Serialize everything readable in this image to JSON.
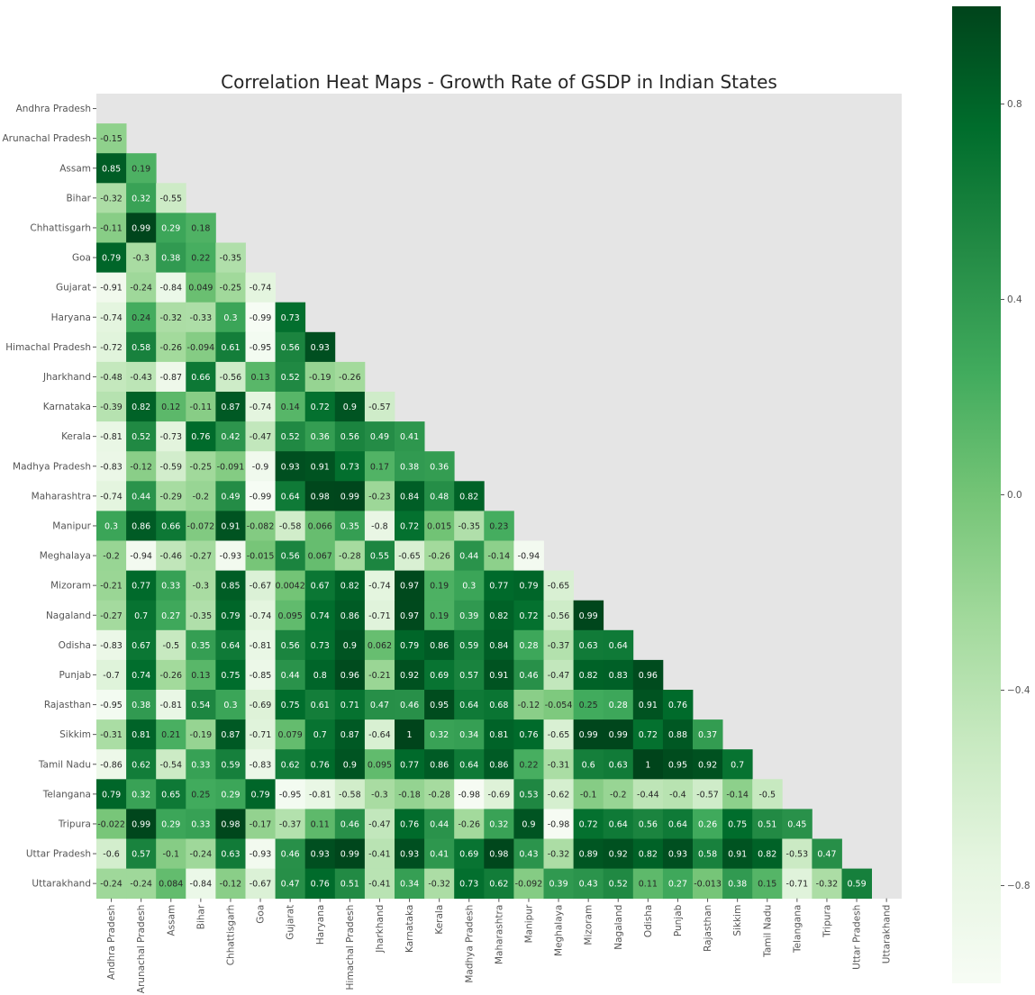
{
  "chart_data": {
    "type": "heatmap",
    "title": "Correlation Heat Maps - Growth Rate of GSDP in Indian States",
    "xlabel": "",
    "ylabel": "",
    "mask": "upper-triangle-and-diagonal",
    "grid": false,
    "colormap": "Greens",
    "colorscale_range": [
      -1,
      1
    ],
    "colorbar": {
      "placement": "right",
      "ticks": [
        0.8,
        0.4,
        0.0,
        -0.4,
        -0.8
      ],
      "tick_labels": [
        "0.8",
        "0.4",
        "0.0",
        "−0.4",
        "−0.8"
      ]
    },
    "colors": {
      "background": "#e5e5e5",
      "low": "#f7fcf5",
      "high": "#00441b",
      "annotation_dark": "#262626",
      "annotation_light": "#ffffff"
    },
    "labels": [
      "Andhra Pradesh",
      "Arunachal Pradesh",
      "Assam",
      "Bihar",
      "Chhattisgarh",
      "Goa",
      "Gujarat",
      "Haryana",
      "Himachal Pradesh",
      "Jharkhand",
      "Karnataka",
      "Kerala",
      "Madhya Pradesh",
      "Maharashtra",
      "Manipur",
      "Meghalaya",
      "Mizoram",
      "Nagaland",
      "Odisha",
      "Punjab",
      "Rajasthan",
      "Sikkim",
      "Tamil Nadu",
      "Telangana",
      "Tripura",
      "Uttar Pradesh",
      "Uttarakhand"
    ],
    "rows": [
      [],
      [
        "-0.15"
      ],
      [
        "0.85",
        "0.19"
      ],
      [
        "-0.32",
        "0.32",
        "-0.55"
      ],
      [
        "-0.11",
        "0.99",
        "0.29",
        "0.18"
      ],
      [
        "0.79",
        "-0.3",
        "0.38",
        "0.22",
        "-0.35"
      ],
      [
        "-0.91",
        "-0.24",
        "-0.84",
        "0.049",
        "-0.25",
        "-0.74"
      ],
      [
        "-0.74",
        "0.24",
        "-0.32",
        "-0.33",
        "0.3",
        "-0.99",
        "0.73"
      ],
      [
        "-0.72",
        "0.58",
        "-0.26",
        "-0.094",
        "0.61",
        "-0.95",
        "0.56",
        "0.93"
      ],
      [
        "-0.48",
        "-0.43",
        "-0.87",
        "0.66",
        "-0.56",
        "0.13",
        "0.52",
        "-0.19",
        "-0.26"
      ],
      [
        "-0.39",
        "0.82",
        "0.12",
        "-0.11",
        "0.87",
        "-0.74",
        "0.14",
        "0.72",
        "0.9",
        "-0.57"
      ],
      [
        "-0.81",
        "0.52",
        "-0.73",
        "0.76",
        "0.42",
        "-0.47",
        "0.52",
        "0.36",
        "0.56",
        "0.49",
        "0.41"
      ],
      [
        "-0.83",
        "-0.12",
        "-0.59",
        "-0.25",
        "-0.091",
        "-0.9",
        "0.93",
        "0.91",
        "0.73",
        "0.17",
        "0.38",
        "0.36"
      ],
      [
        "-0.74",
        "0.44",
        "-0.29",
        "-0.2",
        "0.49",
        "-0.99",
        "0.64",
        "0.98",
        "0.99",
        "-0.23",
        "0.84",
        "0.48",
        "0.82"
      ],
      [
        "0.3",
        "0.86",
        "0.66",
        "-0.072",
        "0.91",
        "-0.082",
        "-0.58",
        "0.066",
        "0.35",
        "-0.8",
        "0.72",
        "0.015",
        "-0.35",
        "0.23"
      ],
      [
        "-0.2",
        "-0.94",
        "-0.46",
        "-0.27",
        "-0.93",
        "-0.015",
        "0.56",
        "0.067",
        "-0.28",
        "0.55",
        "-0.65",
        "-0.26",
        "0.44",
        "-0.14",
        "-0.94"
      ],
      [
        "-0.21",
        "0.77",
        "0.33",
        "-0.3",
        "0.85",
        "-0.67",
        "0.0042",
        "0.67",
        "0.82",
        "-0.74",
        "0.97",
        "0.19",
        "0.3",
        "0.77",
        "0.79",
        "-0.65"
      ],
      [
        "-0.27",
        "0.7",
        "0.27",
        "-0.35",
        "0.79",
        "-0.74",
        "0.095",
        "0.74",
        "0.86",
        "-0.71",
        "0.97",
        "0.19",
        "0.39",
        "0.82",
        "0.72",
        "-0.56",
        "0.99"
      ],
      [
        "-0.83",
        "0.67",
        "-0.5",
        "0.35",
        "0.64",
        "-0.81",
        "0.56",
        "0.73",
        "0.9",
        "0.062",
        "0.79",
        "0.86",
        "0.59",
        "0.84",
        "0.28",
        "-0.37",
        "0.63",
        "0.64"
      ],
      [
        "-0.7",
        "0.74",
        "-0.26",
        "0.13",
        "0.75",
        "-0.85",
        "0.44",
        "0.8",
        "0.96",
        "-0.21",
        "0.92",
        "0.69",
        "0.57",
        "0.91",
        "0.46",
        "-0.47",
        "0.82",
        "0.83",
        "0.96"
      ],
      [
        "-0.95",
        "0.38",
        "-0.81",
        "0.54",
        "0.3",
        "-0.69",
        "0.75",
        "0.61",
        "0.71",
        "0.47",
        "0.46",
        "0.95",
        "0.64",
        "0.68",
        "-0.12",
        "-0.054",
        "0.25",
        "0.28",
        "0.91",
        "0.76"
      ],
      [
        "-0.31",
        "0.81",
        "0.21",
        "-0.19",
        "0.87",
        "-0.71",
        "0.079",
        "0.7",
        "0.87",
        "-0.64",
        "1",
        "0.32",
        "0.34",
        "0.81",
        "0.76",
        "-0.65",
        "0.99",
        "0.99",
        "0.72",
        "0.88",
        "0.37"
      ],
      [
        "-0.86",
        "0.62",
        "-0.54",
        "0.33",
        "0.59",
        "-0.83",
        "0.62",
        "0.76",
        "0.9",
        "0.095",
        "0.77",
        "0.86",
        "0.64",
        "0.86",
        "0.22",
        "-0.31",
        "0.6",
        "0.63",
        "1",
        "0.95",
        "0.92",
        "0.7"
      ],
      [
        "0.79",
        "0.32",
        "0.65",
        "0.25",
        "0.29",
        "0.79",
        "-0.95",
        "-0.81",
        "-0.58",
        "-0.3",
        "-0.18",
        "-0.28",
        "-0.98",
        "-0.69",
        "0.53",
        "-0.62",
        "-0.1",
        "-0.2",
        "-0.44",
        "-0.4",
        "-0.57",
        "-0.14",
        "-0.5"
      ],
      [
        "-0.022",
        "0.99",
        "0.29",
        "0.33",
        "0.98",
        "-0.17",
        "-0.37",
        "0.11",
        "0.46",
        "-0.47",
        "0.76",
        "0.44",
        "-0.26",
        "0.32",
        "0.9",
        "-0.98",
        "0.72",
        "0.64",
        "0.56",
        "0.64",
        "0.26",
        "0.75",
        "0.51",
        "0.45"
      ],
      [
        "-0.6",
        "0.57",
        "-0.1",
        "-0.24",
        "0.63",
        "-0.93",
        "0.46",
        "0.93",
        "0.99",
        "-0.41",
        "0.93",
        "0.41",
        "0.69",
        "0.98",
        "0.43",
        "-0.32",
        "0.89",
        "0.92",
        "0.82",
        "0.93",
        "0.58",
        "0.91",
        "0.82",
        "-0.53",
        "0.47"
      ],
      [
        "-0.24",
        "-0.24",
        "0.084",
        "-0.84",
        "-0.12",
        "-0.67",
        "0.47",
        "0.76",
        "0.51",
        "-0.41",
        "0.34",
        "-0.32",
        "0.73",
        "0.62",
        "-0.092",
        "0.39",
        "0.43",
        "0.52",
        "0.11",
        "0.27",
        "-0.013",
        "0.38",
        "0.15",
        "-0.71",
        "-0.32",
        "0.59"
      ]
    ]
  }
}
